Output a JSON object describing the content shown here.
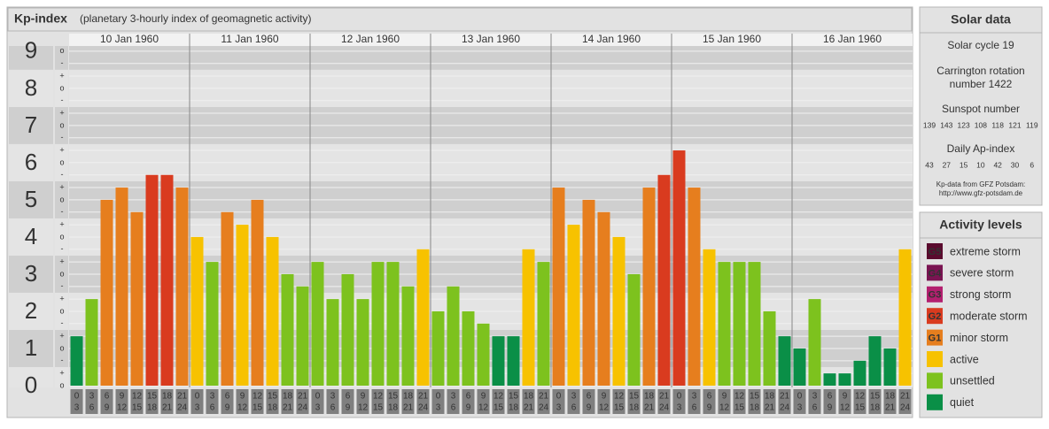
{
  "chart_data": {
    "type": "bar",
    "title": "Kp-index",
    "subtitle": "(planetary 3-hourly index of geomagnetic activity)",
    "ylim": [
      0,
      9.33
    ],
    "yticks": [
      0,
      1,
      2,
      3,
      4,
      5,
      6,
      7,
      8,
      9
    ],
    "minor_ticks": [
      {
        "value": 0,
        "label": "o"
      },
      {
        "value": 0.33,
        "label": "+"
      },
      {
        "value": 0.67,
        "label": "-"
      },
      {
        "value": 1,
        "label": "o"
      },
      {
        "value": 1.33,
        "label": "+"
      },
      {
        "value": 1.67,
        "label": "-"
      },
      {
        "value": 2,
        "label": "o"
      },
      {
        "value": 2.33,
        "label": "+"
      },
      {
        "value": 2.67,
        "label": "-"
      },
      {
        "value": 3,
        "label": "o"
      },
      {
        "value": 3.33,
        "label": "+"
      },
      {
        "value": 3.67,
        "label": "-"
      },
      {
        "value": 4,
        "label": "o"
      },
      {
        "value": 4.33,
        "label": "+"
      },
      {
        "value": 4.67,
        "label": "-"
      },
      {
        "value": 5,
        "label": "o"
      },
      {
        "value": 5.33,
        "label": "+"
      },
      {
        "value": 5.67,
        "label": "-"
      },
      {
        "value": 6,
        "label": "o"
      },
      {
        "value": 6.33,
        "label": "+"
      },
      {
        "value": 6.67,
        "label": "-"
      },
      {
        "value": 7,
        "label": "o"
      },
      {
        "value": 7.33,
        "label": "+"
      },
      {
        "value": 7.67,
        "label": "-"
      },
      {
        "value": 8,
        "label": "o"
      },
      {
        "value": 8.33,
        "label": "+"
      },
      {
        "value": 8.67,
        "label": "-"
      },
      {
        "value": 9,
        "label": "o"
      }
    ],
    "hours": [
      "0",
      "3",
      "6",
      "9",
      "12",
      "15",
      "18",
      "21",
      "24"
    ],
    "days": [
      {
        "label": "10 Jan 1960",
        "values": [
          1.33,
          2.33,
          5,
          5.33,
          4.67,
          5.67,
          5.67,
          5.33
        ],
        "colors": [
          "#0a8f47",
          "#7dc21e",
          "#e67e1e",
          "#e67e1e",
          "#e67e1e",
          "#d93b1f",
          "#d93b1f",
          "#e67e1e"
        ]
      },
      {
        "label": "11 Jan 1960",
        "values": [
          4,
          3.33,
          4.67,
          4.33,
          5,
          4,
          3,
          2.67
        ],
        "colors": [
          "#f7c200",
          "#7dc21e",
          "#e67e1e",
          "#f7c200",
          "#e67e1e",
          "#f7c200",
          "#7dc21e",
          "#7dc21e"
        ]
      },
      {
        "label": "12 Jan 1960",
        "values": [
          3.33,
          2.33,
          3,
          2.33,
          3.33,
          3.33,
          2.67,
          3.67
        ],
        "colors": [
          "#7dc21e",
          "#7dc21e",
          "#7dc21e",
          "#7dc21e",
          "#7dc21e",
          "#7dc21e",
          "#7dc21e",
          "#f7c200"
        ]
      },
      {
        "label": "13 Jan 1960",
        "values": [
          2,
          2.67,
          2,
          1.67,
          1.33,
          1.33,
          3.67,
          3.33
        ],
        "colors": [
          "#7dc21e",
          "#7dc21e",
          "#7dc21e",
          "#7dc21e",
          "#0a8f47",
          "#0a8f47",
          "#f7c200",
          "#7dc21e"
        ]
      },
      {
        "label": "14 Jan 1960",
        "values": [
          5.33,
          4.33,
          5,
          4.67,
          4,
          3,
          5.33,
          5.67
        ],
        "colors": [
          "#e67e1e",
          "#f7c200",
          "#e67e1e",
          "#e67e1e",
          "#f7c200",
          "#7dc21e",
          "#e67e1e",
          "#d93b1f"
        ]
      },
      {
        "label": "15 Jan 1960",
        "values": [
          6.33,
          5.33,
          3.67,
          3.33,
          3.33,
          3.33,
          2,
          1.33
        ],
        "colors": [
          "#d93b1f",
          "#e67e1e",
          "#f7c200",
          "#7dc21e",
          "#7dc21e",
          "#7dc21e",
          "#7dc21e",
          "#0a8f47"
        ]
      },
      {
        "label": "16 Jan 1960",
        "values": [
          1,
          2.33,
          0.33,
          0.33,
          0.67,
          1.33,
          1,
          3.67
        ],
        "colors": [
          "#0a8f47",
          "#7dc21e",
          "#0a8f47",
          "#0a8f47",
          "#0a8f47",
          "#0a8f47",
          "#0a8f47",
          "#f7c200"
        ]
      }
    ]
  },
  "solar_data": {
    "title": "Solar data",
    "cycle": "Solar cycle 19",
    "carrington": [
      "Carrington rotation",
      "number 1422"
    ],
    "sunspot_title": "Sunspot number",
    "sunspot": [
      139,
      143,
      123,
      108,
      118,
      121,
      119
    ],
    "ap_title": "Daily Ap-index",
    "ap": [
      43,
      27,
      15,
      10,
      42,
      30,
      6
    ],
    "source": [
      "Kp-data from GFZ Potsdam:",
      "http://www.gfz-potsdam.de"
    ]
  },
  "activity_levels": {
    "title": "Activity levels",
    "levels": [
      {
        "badge": "G5",
        "name": "extreme storm",
        "color": "#5a0b2e"
      },
      {
        "badge": "G4",
        "name": "severe storm",
        "color": "#7a1452"
      },
      {
        "badge": "G3",
        "name": "strong storm",
        "color": "#b3206f"
      },
      {
        "badge": "G2",
        "name": "moderate storm",
        "color": "#d93b1f"
      },
      {
        "badge": "G1",
        "name": "minor storm",
        "color": "#e67e1e"
      },
      {
        "name": "active",
        "color": "#f7c200"
      },
      {
        "name": "unsettled",
        "color": "#7dc21e"
      },
      {
        "name": "quiet",
        "color": "#0a8f47"
      }
    ]
  }
}
